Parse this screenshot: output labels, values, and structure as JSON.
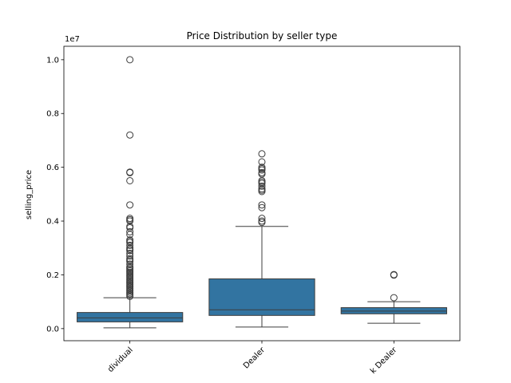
{
  "chart_data": {
    "type": "box",
    "title": "Price Distribution by seller type",
    "xlabel": "",
    "ylabel": "selling_price",
    "y_offset_label": "1e7",
    "y_scale": 10000000,
    "ylim": [
      -450000,
      10500000
    ],
    "yticks": [
      0,
      2000000,
      4000000,
      6000000,
      8000000,
      10000000
    ],
    "ytick_labels": [
      "0.0",
      "0.2",
      "0.4",
      "0.6",
      "0.8",
      "1.0"
    ],
    "categories": [
      "Individual",
      "Dealer",
      "Trustmark Dealer"
    ],
    "category_display": [
      "dividual",
      "Dealer",
      "k Dealer"
    ],
    "box_color": "#3274a1",
    "line_color": "#3d3d3d",
    "boxes": [
      {
        "category": "Individual",
        "whisker_low": 30000,
        "q1": 250000,
        "median": 400000,
        "q3": 600000,
        "whisker_high": 1150000,
        "outliers": [
          10000000,
          7200000,
          5800000,
          5820000,
          5500000,
          4600000,
          4100000,
          4050000,
          4000000,
          3800000,
          3750000,
          3600000,
          3500000,
          3300000,
          3250000,
          3200000,
          3100000,
          3000000,
          2950000,
          2900000,
          2800000,
          2700000,
          2600000,
          2550000,
          2500000,
          2400000,
          2300000,
          2250000,
          2200000,
          2150000,
          2100000,
          2050000,
          2000000,
          1950000,
          1900000,
          1850000,
          1800000,
          1750000,
          1700000,
          1650000,
          1600000,
          1550000,
          1500000,
          1450000,
          1400000,
          1350000,
          1300000,
          1250000,
          1200000
        ]
      },
      {
        "category": "Dealer",
        "whisker_low": 60000,
        "q1": 490000,
        "median": 700000,
        "q3": 1850000,
        "whisker_high": 3800000,
        "outliers": [
          6500000,
          6200000,
          6000000,
          5950000,
          5900000,
          5800000,
          5750000,
          5500000,
          5450000,
          5400000,
          5300000,
          5200000,
          5150000,
          5100000,
          4600000,
          4500000,
          4100000,
          4000000,
          3950000
        ]
      },
      {
        "category": "Trustmark Dealer",
        "whisker_low": 200000,
        "q1": 550000,
        "median": 650000,
        "q3": 780000,
        "whisker_high": 1000000,
        "outliers": [
          2000000,
          2010000,
          1990000,
          1150000
        ]
      }
    ]
  }
}
